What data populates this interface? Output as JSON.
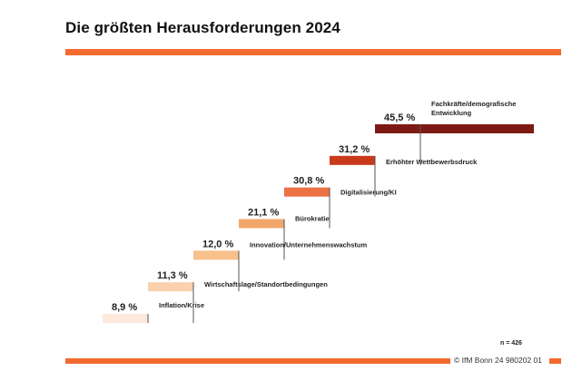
{
  "title": "Die größten Herausforderungen 2024",
  "colors": {
    "accent": "#f26a2e",
    "step_colors": [
      "#fde9dc",
      "#fbd0ad",
      "#f8c08c",
      "#f3a66a",
      "#ee7045",
      "#c93a1c",
      "#7e1a14"
    ],
    "connector": "#555555"
  },
  "note": "n = 426",
  "source": "© IfM  Bonn 24 980202 01",
  "chart_data": {
    "type": "bar",
    "style": "staircase",
    "unit": "%",
    "categories": [
      "Inflation/Krise",
      "Wirtschaftslage/Standortbedingungen",
      "Innovation/Unternehmenswachstum",
      "Bürokratie",
      "Digitalisierung/KI",
      "Erhöhter Wettbewerbsdruck",
      "Fachkräfte/demografische Entwicklung"
    ],
    "values": [
      8.9,
      11.3,
      12.0,
      21.1,
      30.8,
      31.2,
      45.5
    ],
    "value_labels": [
      "8,9 %",
      "11,3 %",
      "12,0 %",
      "21,1 %",
      "30,8 %",
      "31,2 %",
      "45,5 %"
    ]
  }
}
